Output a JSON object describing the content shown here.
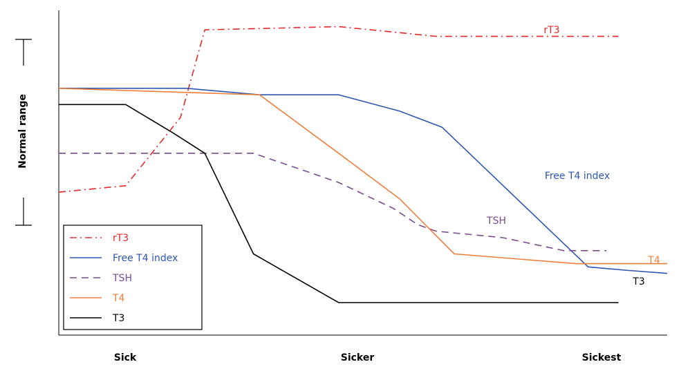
{
  "chart_data": {
    "type": "line",
    "title": "",
    "xlabel": "",
    "ylabel": "Normal range",
    "categories": [
      "Sick",
      "Sicker",
      "Sickest"
    ],
    "x_range": [
      0,
      1
    ],
    "y_range": [
      0,
      100
    ],
    "grid": false,
    "legend_placement": "bottom-left",
    "series": [
      {
        "name": "rT3",
        "color": "#e8282b",
        "dash": "dash-dot",
        "points": [
          [
            0.0,
            44
          ],
          [
            0.11,
            46
          ],
          [
            0.2,
            67
          ],
          [
            0.24,
            94
          ],
          [
            0.46,
            95
          ],
          [
            0.62,
            92
          ],
          [
            0.92,
            92
          ]
        ]
      },
      {
        "name": "Free T4 index",
        "color": "#2f56b3",
        "dash": "solid",
        "points": [
          [
            0.0,
            76
          ],
          [
            0.21,
            76
          ],
          [
            0.33,
            74
          ],
          [
            0.46,
            74
          ],
          [
            0.56,
            69
          ],
          [
            0.63,
            64
          ],
          [
            0.87,
            21
          ],
          [
            0.93,
            20
          ],
          [
            1.0,
            19
          ]
        ]
      },
      {
        "name": "TSH",
        "color": "#7a4b8c",
        "dash": "dashed",
        "points": [
          [
            0.0,
            56
          ],
          [
            0.32,
            56
          ],
          [
            0.46,
            47
          ],
          [
            0.55,
            39
          ],
          [
            0.59,
            34
          ],
          [
            0.62,
            32
          ],
          [
            0.73,
            30
          ],
          [
            0.83,
            26
          ],
          [
            0.9,
            26
          ]
        ]
      },
      {
        "name": "T4",
        "color": "#f07f3c",
        "dash": "solid",
        "points": [
          [
            0.0,
            76
          ],
          [
            0.33,
            74
          ],
          [
            0.46,
            56
          ],
          [
            0.56,
            42
          ],
          [
            0.65,
            25
          ],
          [
            0.85,
            22
          ],
          [
            1.0,
            22
          ]
        ]
      },
      {
        "name": "T3",
        "color": "#000000",
        "dash": "solid",
        "points": [
          [
            0.0,
            71
          ],
          [
            0.11,
            71
          ],
          [
            0.19,
            62
          ],
          [
            0.24,
            56
          ],
          [
            0.32,
            25
          ],
          [
            0.46,
            10
          ],
          [
            0.92,
            10
          ]
        ]
      }
    ],
    "annotations": [
      {
        "text": "rT3",
        "color": "#e8282b"
      },
      {
        "text": "Free T4 index",
        "color": "#2f56b3"
      },
      {
        "text": "TSH",
        "color": "#7a4b8c"
      },
      {
        "text": "T4",
        "color": "#f07f3c"
      },
      {
        "text": "T3",
        "color": "#000000"
      }
    ]
  }
}
